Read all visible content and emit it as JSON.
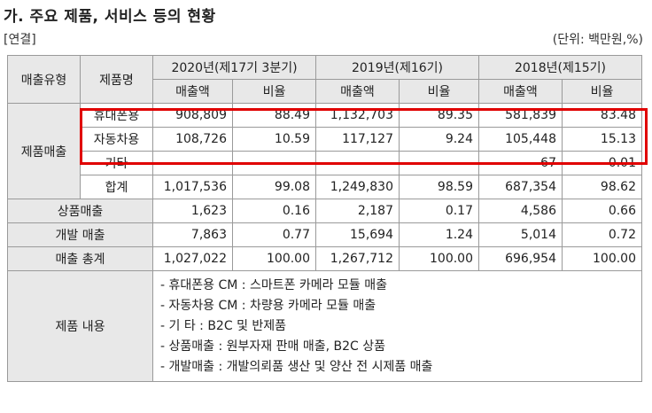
{
  "header": {
    "title": "가. 주요 제품, 서비스 등의 현황",
    "scope": "[연결]",
    "unit": "(단위: 백만원,%)"
  },
  "table": {
    "col_type": "매출유형",
    "col_product": "제품명",
    "periods": [
      "2020년(제17기 3분기)",
      "2019년(제16기)",
      "2018년(제15기)"
    ],
    "sub_sales": "매출액",
    "sub_ratio": "비율",
    "group_product_sales": "제품매출",
    "rows": [
      {
        "name": "휴대폰용",
        "v": [
          "908,809",
          "88.49",
          "1,132,703",
          "89.35",
          "581,839",
          "83.48"
        ]
      },
      {
        "name": "자동차용",
        "v": [
          "108,726",
          "10.59",
          "117,127",
          "9.24",
          "105,448",
          "15.13"
        ]
      },
      {
        "name": "기타",
        "v": [
          "-",
          "-",
          "-",
          "-",
          "67",
          "0.01"
        ]
      },
      {
        "name": "합계",
        "v": [
          "1,017,536",
          "99.08",
          "1,249,830",
          "98.59",
          "687,354",
          "98.62"
        ]
      }
    ],
    "other_rows": [
      {
        "name": "상품매출",
        "v": [
          "1,623",
          "0.16",
          "2,187",
          "0.17",
          "4,586",
          "0.66"
        ]
      },
      {
        "name": "개발 매출",
        "v": [
          "7,863",
          "0.77",
          "15,694",
          "1.24",
          "5,014",
          "0.72"
        ]
      },
      {
        "name": "매출 총계",
        "v": [
          "1,027,022",
          "100.00",
          "1,267,712",
          "100.00",
          "696,954",
          "100.00"
        ]
      }
    ],
    "content_label": "제품 내용",
    "content_lines": [
      "- 휴대폰용 CM : 스마트폰 카메라 모듈 매출",
      "- 자동차용 CM : 차량용 카메라 모듈 매출",
      "- 기 타 : B2C 및 반제품",
      "- 상품매출 : 원부자재 판매 매출, B2C 상품",
      "- 개발매출 : 개발의뢰품 생산 및 양산 전 시제품 매출"
    ]
  }
}
